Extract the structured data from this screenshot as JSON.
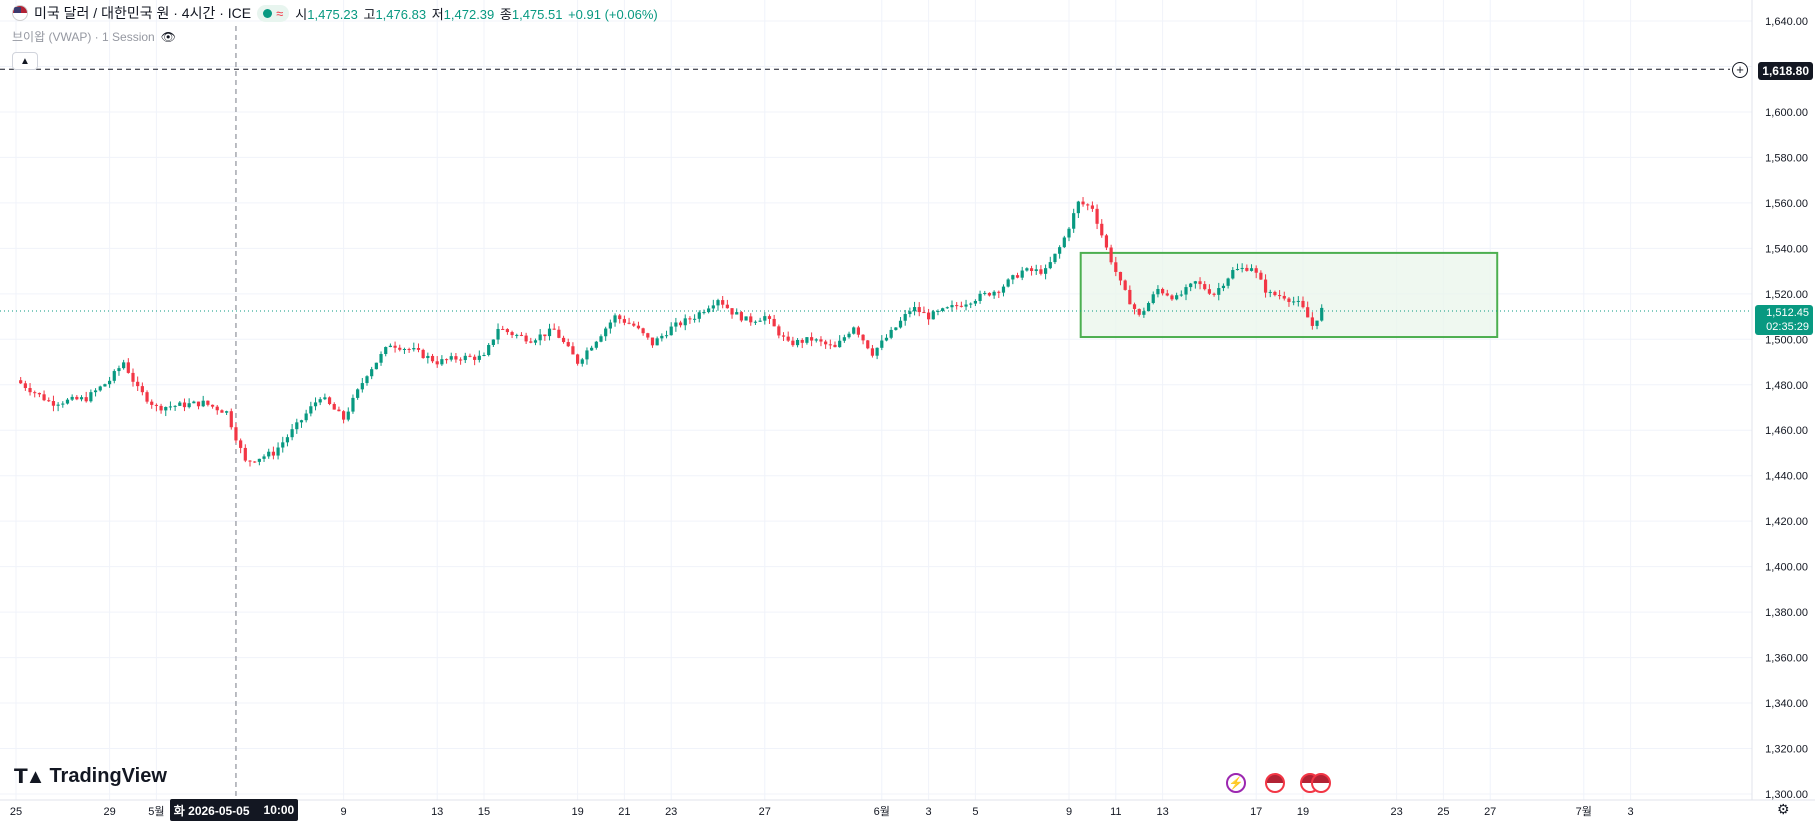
{
  "legend": {
    "symbol": "미국 달러 / 대한민국 원 · 4시간 · ICE",
    "approx_glyph": "≈",
    "open_label": "시",
    "open": "1,475.23",
    "high_label": "고",
    "high": "1,476.83",
    "low_label": "저",
    "low": "1,472.39",
    "close_label": "종",
    "close": "1,475.51",
    "change": "+0.91 (+0.06%)"
  },
  "indicator": {
    "name": "브이왑 (VWAP) · 1 Session"
  },
  "price_labels": {
    "line": "1,618.80",
    "last_price": "1,512.45",
    "countdown": "02:35:29"
  },
  "crosshair": {
    "date": "화 2026-05-05",
    "time": "10:00"
  },
  "brand": {
    "name": "TradingView"
  },
  "colors": {
    "up": "#089981",
    "down": "#f23645",
    "zone_border": "#4caf50",
    "zone_fill": "#e8f5e9"
  },
  "chart_data": {
    "type": "candlestick",
    "x_ticks": [
      {
        "label": "25",
        "day": 0
      },
      {
        "label": "29",
        "day": 4
      },
      {
        "label": "5월",
        "day": 6
      },
      {
        "label": "9",
        "day": 14
      },
      {
        "label": "13",
        "day": 18
      },
      {
        "label": "15",
        "day": 20
      },
      {
        "label": "19",
        "day": 24
      },
      {
        "label": "21",
        "day": 26
      },
      {
        "label": "23",
        "day": 28
      },
      {
        "label": "27",
        "day": 32
      },
      {
        "label": "6월",
        "day": 37
      },
      {
        "label": "3",
        "day": 39
      },
      {
        "label": "5",
        "day": 41
      },
      {
        "label": "9",
        "day": 45
      },
      {
        "label": "11",
        "day": 47
      },
      {
        "label": "13",
        "day": 49
      },
      {
        "label": "17",
        "day": 53
      },
      {
        "label": "19",
        "day": 55
      },
      {
        "label": "23",
        "day": 59
      },
      {
        "label": "25",
        "day": 61
      },
      {
        "label": "27",
        "day": 63
      },
      {
        "label": "7월",
        "day": 67
      },
      {
        "label": "3",
        "day": 69
      }
    ],
    "y_ticks": [
      "1,640.00",
      "1,620.00",
      "1,600.00",
      "1,580.00",
      "1,560.00",
      "1,540.00",
      "1,520.00",
      "1,500.00",
      "1,480.00",
      "1,460.00",
      "1,440.00",
      "1,420.00",
      "1,400.00",
      "1,380.00",
      "1,360.00",
      "1,340.00",
      "1,320.00",
      "1,300.00"
    ],
    "y_range": [
      1300,
      1640
    ],
    "close_path": [
      [
        0,
        1482
      ],
      [
        1.5,
        1472
      ],
      [
        3,
        1474
      ],
      [
        4,
        1482
      ],
      [
        4.6,
        1490
      ],
      [
        5.2,
        1478
      ],
      [
        6,
        1470
      ],
      [
        7,
        1471
      ],
      [
        8,
        1472
      ],
      [
        9,
        1468
      ],
      [
        9.8,
        1446
      ],
      [
        11,
        1450
      ],
      [
        12,
        1462
      ],
      [
        13,
        1475
      ],
      [
        14,
        1465
      ],
      [
        15,
        1485
      ],
      [
        16,
        1498
      ],
      [
        17,
        1495
      ],
      [
        18,
        1490
      ],
      [
        19,
        1492
      ],
      [
        20,
        1492
      ],
      [
        20.6,
        1505
      ],
      [
        21.3,
        1502
      ],
      [
        22,
        1500
      ],
      [
        23,
        1504
      ],
      [
        24,
        1490
      ],
      [
        24.8,
        1500
      ],
      [
        25.6,
        1510
      ],
      [
        26.4,
        1506
      ],
      [
        27.2,
        1498
      ],
      [
        28,
        1505
      ],
      [
        29,
        1510
      ],
      [
        30,
        1518
      ],
      [
        30.6,
        1512
      ],
      [
        31.3,
        1508
      ],
      [
        32,
        1510
      ],
      [
        33,
        1498
      ],
      [
        34,
        1500
      ],
      [
        35,
        1496
      ],
      [
        35.8,
        1506
      ],
      [
        36.6,
        1494
      ],
      [
        37.5,
        1504
      ],
      [
        38.3,
        1514
      ],
      [
        39,
        1510
      ],
      [
        40,
        1514
      ],
      [
        41,
        1518
      ],
      [
        42,
        1522
      ],
      [
        43,
        1530
      ],
      [
        44,
        1530
      ],
      [
        44.7,
        1542
      ],
      [
        45.4,
        1560
      ],
      [
        46,
        1558
      ],
      [
        46.6,
        1540
      ],
      [
        47.3,
        1522
      ],
      [
        48,
        1510
      ],
      [
        48.8,
        1522
      ],
      [
        49.6,
        1518
      ],
      [
        50.4,
        1525
      ],
      [
        51.2,
        1520
      ],
      [
        52,
        1530
      ],
      [
        52.8,
        1532
      ],
      [
        53.5,
        1520
      ],
      [
        54.2,
        1519
      ],
      [
        54.9,
        1515
      ],
      [
        55.4,
        1506
      ],
      [
        55.8,
        1513
      ]
    ],
    "zone_box": {
      "x_start": 45.5,
      "x_end": 63.3,
      "y_low": 1501,
      "y_high": 1538
    },
    "horizontal_line": 1618.8,
    "last_price_value": 1512.45,
    "crosshair_day": 9.4
  }
}
